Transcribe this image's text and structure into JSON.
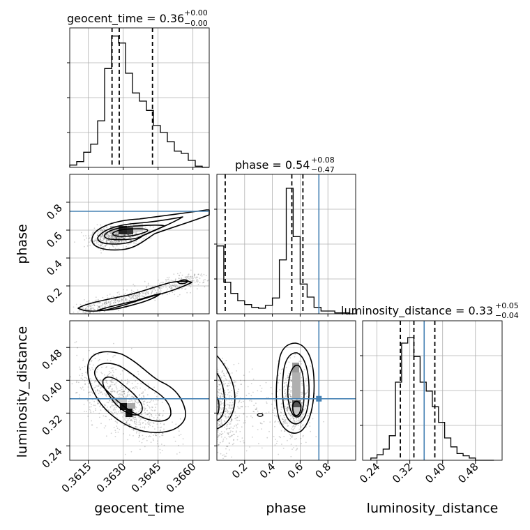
{
  "chart_data": {
    "type": "corner",
    "parameters": [
      "geocent_time",
      "phase",
      "luminosity_distance"
    ],
    "axis_labels": {
      "geocent_time": "geocent_time",
      "phase": "phase",
      "luminosity_distance": "luminosity_distance"
    },
    "titles": [
      {
        "name": "geocent_time",
        "median": "0.36",
        "plus": "+0.00",
        "minus": "−0.00"
      },
      {
        "name": "phase",
        "median": "0.54",
        "plus": "+0.08",
        "minus": "−0.47"
      },
      {
        "name": "luminosity_distance",
        "median": "0.33",
        "plus": "+0.05",
        "minus": "−0.04"
      }
    ],
    "ranges": {
      "geocent_time": [
        0.3607,
        0.3667
      ],
      "phase": [
        0.0,
        1.0
      ],
      "luminosity_distance": [
        0.205,
        0.545
      ]
    },
    "ticks": {
      "geocent_time": {
        "values": [
          0.3615,
          0.363,
          0.3645,
          0.366
        ],
        "labels": [
          "0.3615",
          "0.3630",
          "0.3645",
          "0.3660"
        ]
      },
      "phase_x": {
        "values": [
          0.2,
          0.4,
          0.6,
          0.8
        ],
        "labels": [
          "0.2",
          "0.4",
          "0.6",
          "0.8"
        ]
      },
      "phase_y": {
        "values": [
          0.2,
          0.4,
          0.6,
          0.8
        ],
        "labels": [
          "0.2",
          "0.4",
          "0.6",
          "0.8"
        ]
      },
      "luminosity_distance": {
        "values": [
          0.24,
          0.32,
          0.4,
          0.48
        ],
        "labels": [
          "0.24",
          "0.32",
          "0.40",
          "0.48"
        ]
      }
    },
    "truths": {
      "phase": 0.735,
      "luminosity_distance": 0.355
    },
    "quantiles": {
      "geocent_time": [
        0.36252,
        0.36283,
        0.36426
      ],
      "phase": [
        0.06,
        0.54,
        0.62
      ],
      "luminosity_distance": [
        0.297,
        0.33,
        0.381
      ]
    },
    "histograms": {
      "geocent_time": {
        "edges": [
          0.3607,
          0.361,
          0.3613,
          0.3616,
          0.3619,
          0.3622,
          0.3625,
          0.3628,
          0.3631,
          0.3634,
          0.3637,
          0.364,
          0.3643,
          0.3646,
          0.3649,
          0.3652,
          0.3655,
          0.3658,
          0.3661,
          0.3664,
          0.3667
        ],
        "counts": [
          2,
          5,
          13,
          20,
          40,
          85,
          113,
          107,
          81,
          64,
          57,
          49,
          36,
          30,
          22,
          14,
          12,
          6,
          1,
          0
        ]
      },
      "phase": {
        "edges": [
          0.0,
          0.05,
          0.1,
          0.15,
          0.2,
          0.25,
          0.3,
          0.35,
          0.4,
          0.45,
          0.5,
          0.55,
          0.6,
          0.65,
          0.7,
          0.75,
          0.8,
          0.85,
          0.9,
          0.95,
          1.0
        ],
        "counts": [
          73,
          34,
          22,
          14,
          10,
          7,
          6,
          9,
          17,
          58,
          135,
          83,
          32,
          18,
          7,
          3,
          3,
          1,
          1,
          0
        ],
        "ylim": 150
      },
      "luminosity_distance": {
        "edges": [
          0.225,
          0.24,
          0.255,
          0.27,
          0.285,
          0.3,
          0.315,
          0.33,
          0.345,
          0.36,
          0.375,
          0.39,
          0.405,
          0.42,
          0.435,
          0.45,
          0.465,
          0.48,
          0.495,
          0.51,
          0.525
        ],
        "counts": [
          2,
          5,
          10,
          22,
          70,
          105,
          110,
          93,
          70,
          62,
          48,
          34,
          20,
          12,
          6,
          4,
          2,
          0,
          0,
          0
        ],
        "ylim": 125
      }
    },
    "grid": true
  }
}
